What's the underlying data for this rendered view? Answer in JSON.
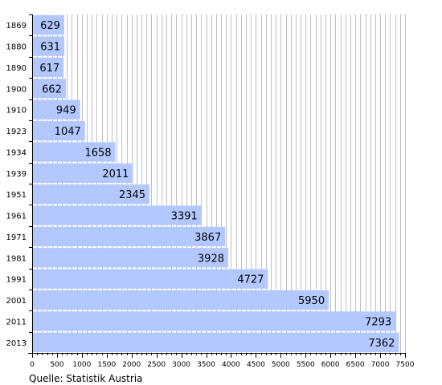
{
  "chart_data": {
    "type": "bar",
    "orientation": "horizontal",
    "categories": [
      "1869",
      "1880",
      "1890",
      "1900",
      "1910",
      "1923",
      "1934",
      "1939",
      "1951",
      "1961",
      "1971",
      "1981",
      "1991",
      "2001",
      "2011",
      "2013"
    ],
    "values": [
      629,
      631,
      617,
      662,
      949,
      1047,
      1658,
      2011,
      2345,
      3391,
      3867,
      3928,
      4727,
      5950,
      7293,
      7362
    ],
    "data_labels": [
      "629",
      "631",
      "617",
      "662",
      "949",
      "1047",
      "1658",
      "2011",
      "2345",
      "3391",
      "3867",
      "3928",
      "4727",
      "5950",
      "7293",
      "7362"
    ],
    "title": "",
    "xlabel": "",
    "ylabel": "",
    "xlim": [
      0,
      7500
    ],
    "major_ticks": [
      "0",
      "500",
      "1000",
      "1500",
      "2000",
      "2500",
      "3000",
      "3500",
      "4000",
      "4500",
      "5000",
      "5500",
      "6000",
      "6500",
      "7000",
      "7500"
    ],
    "minor_tick_step": 100,
    "grid": true,
    "legend": "none",
    "bar_color": "#b3c8ff",
    "grid_color": "#c0c0c0"
  },
  "source": "Quelle: Statistik Austria"
}
